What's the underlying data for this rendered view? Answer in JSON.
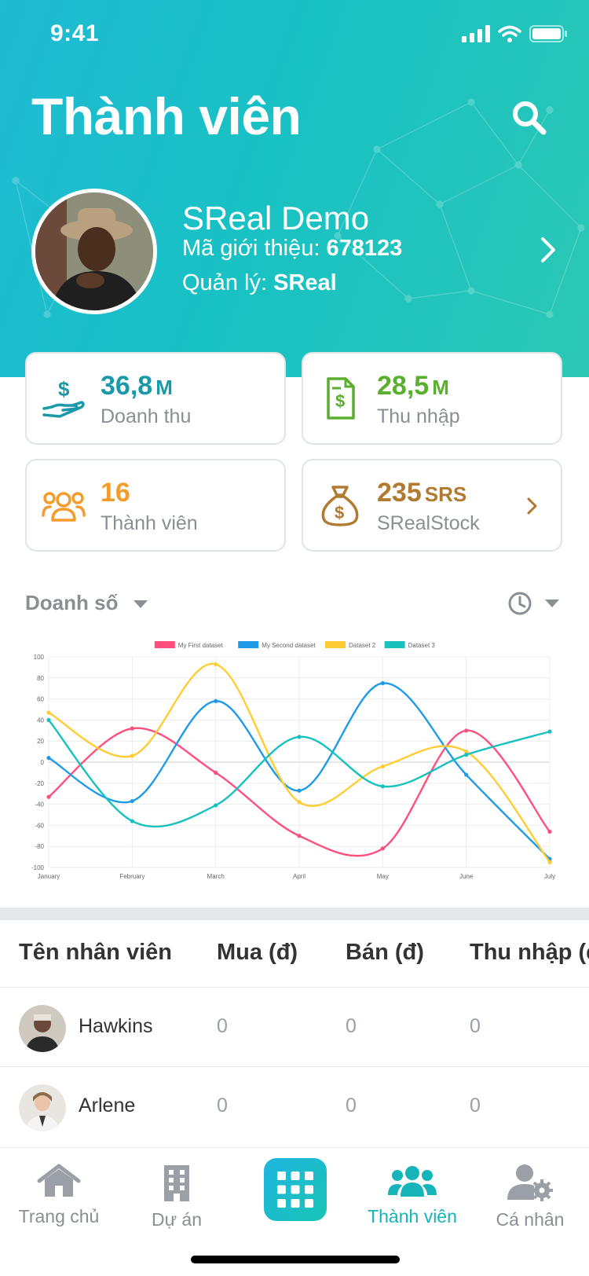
{
  "status": {
    "time": "9:41"
  },
  "header": {
    "title": "Thành viên"
  },
  "profile": {
    "name": "SReal Demo",
    "ref_label": "Mã giới thiệu: ",
    "ref_code": "678123",
    "manager_label": "Quản lý: ",
    "manager_name": "SReal"
  },
  "stats": [
    {
      "value": "36,8",
      "unit": "M",
      "label": "Doanh thu",
      "color": "#1a9aa8",
      "icon": "hand-money-icon"
    },
    {
      "value": "28,5",
      "unit": "M",
      "label": "Thu nhập",
      "color": "#5aaf2e",
      "icon": "invoice-icon"
    },
    {
      "value": "16",
      "unit": "",
      "label": "Thành viên",
      "color": "#f39c2c",
      "icon": "group-icon"
    },
    {
      "value": "235",
      "unit": "SRS",
      "label": "SRealStock",
      "color": "#b07a30",
      "icon": "money-bag-icon"
    }
  ],
  "chart_filter": {
    "label": "Doanh số"
  },
  "chart_data": {
    "type": "line",
    "categories": [
      "January",
      "February",
      "March",
      "April",
      "May",
      "June",
      "July"
    ],
    "ylim": [
      -100,
      100
    ],
    "yticks": [
      -100,
      -80,
      -60,
      -40,
      -20,
      0,
      20,
      40,
      60,
      80,
      100
    ],
    "grid": true,
    "legend_position": "top",
    "series": [
      {
        "name": "My First dataset",
        "color": "#ff4f7d",
        "values": [
          -33,
          32,
          -10,
          -70,
          -82,
          30,
          -66
        ]
      },
      {
        "name": "My Second dataset",
        "color": "#1e9be8",
        "values": [
          4,
          -37,
          58,
          -27,
          75,
          -12,
          -92
        ]
      },
      {
        "name": "Dataset 2",
        "color": "#ffcd33",
        "values": [
          47,
          6,
          93,
          -38,
          -4,
          10,
          -95
        ]
      },
      {
        "name": "Dataset 3",
        "color": "#17c1be",
        "values": [
          40,
          -56,
          -41,
          24,
          -23,
          7,
          29
        ]
      }
    ]
  },
  "table": {
    "headers": [
      "Tên nhân viên",
      "Mua (đ)",
      "Bán (đ)",
      "Thu nhập (đ)"
    ],
    "rows": [
      {
        "name": "Hawkins",
        "buy": "0",
        "sell": "0",
        "income": "0"
      },
      {
        "name": "Arlene",
        "buy": "0",
        "sell": "0",
        "income": "0"
      }
    ]
  },
  "tabs": [
    {
      "label": "Trang chủ",
      "icon": "home-icon"
    },
    {
      "label": "Dự án",
      "icon": "building-icon"
    },
    {
      "label": "Thành viên",
      "icon": "members-icon",
      "active": true
    },
    {
      "label": "Cá nhân",
      "icon": "user-settings-icon"
    }
  ]
}
